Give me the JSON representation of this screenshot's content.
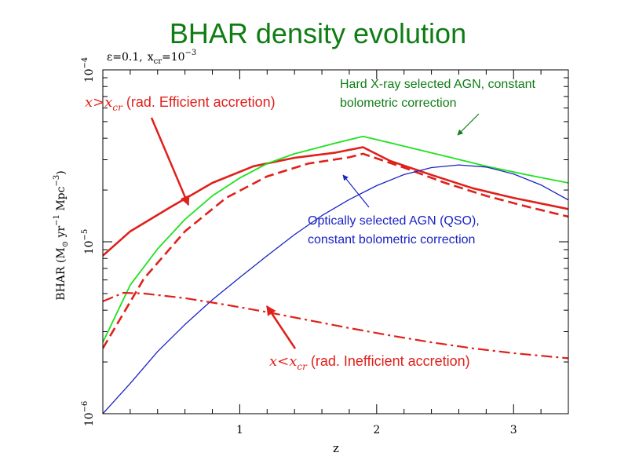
{
  "slide": {
    "title": "BHAR density evolution"
  },
  "chart_data": {
    "type": "line",
    "title": "BHAR density evolution",
    "subtitle": "ε=0.1, x_cr=10^-3",
    "subtitle_parts": {
      "eps": "ε=0.1,",
      "x": "x",
      "sub": "cr",
      "eq": "=10",
      "sup": "−3"
    },
    "xlabel": "z",
    "ylabel": "BHAR (M⊙ yr⁻¹ Mpc⁻³)",
    "ylabel_parts": {
      "pre": "BHAR (M",
      "sun": "⊙",
      "yr": " yr",
      "yrexp": "−1",
      "mpc": " Mpc",
      "mpcexp": "−3",
      "close": ")"
    },
    "xlim": [
      0.0,
      3.4
    ],
    "ylim": [
      1e-06,
      0.0001
    ],
    "yscale": "log",
    "xticks": [
      {
        "v": 1,
        "label": "1"
      },
      {
        "v": 2,
        "label": "2"
      },
      {
        "v": 3,
        "label": "3"
      }
    ],
    "yticks": [
      {
        "v": 1e-06,
        "base": "10",
        "exp": "−6"
      },
      {
        "v": 1e-05,
        "base": "10",
        "exp": "−5"
      },
      {
        "v": 0.0001,
        "base": "10",
        "exp": "−4"
      }
    ],
    "grid": false,
    "series": [
      {
        "key": "efficient",
        "color": "#e0201a",
        "style": "solid",
        "width": 2.6,
        "x": [
          0.0,
          0.2,
          0.5,
          0.8,
          1.1,
          1.4,
          1.7,
          1.9,
          2.1,
          2.4,
          2.7,
          3.0,
          3.4
        ],
        "y": [
          8.3e-06,
          1.15e-05,
          1.6e-05,
          2.2e-05,
          2.75e-05,
          3.08e-05,
          3.3e-05,
          3.55e-05,
          2.95e-05,
          2.45e-05,
          2.05e-05,
          1.8e-05,
          1.55e-05
        ]
      },
      {
        "key": "efficient-dashed",
        "color": "#e0201a",
        "style": "dashed",
        "width": 2.6,
        "x": [
          0.0,
          0.3,
          0.6,
          0.9,
          1.2,
          1.5,
          1.8,
          1.9,
          2.2,
          2.5,
          2.8,
          3.1,
          3.4
        ],
        "y": [
          2.4e-06,
          6.1e-06,
          1.15e-05,
          1.8e-05,
          2.4e-05,
          2.85e-05,
          3.1e-05,
          3.25e-05,
          2.7e-05,
          2.2e-05,
          1.85e-05,
          1.6e-05,
          1.4e-05
        ]
      },
      {
        "key": "hard-xray",
        "color": "#1fe11f",
        "style": "solid",
        "width": 1.8,
        "x": [
          0.0,
          0.2,
          0.4,
          0.6,
          0.8,
          1.0,
          1.2,
          1.4,
          1.7,
          1.9,
          2.2,
          2.5,
          2.8,
          3.1,
          3.4
        ],
        "y": [
          2.6e-06,
          5.6e-06,
          9.1e-06,
          1.35e-05,
          1.85e-05,
          2.35e-05,
          2.85e-05,
          3.25e-05,
          3.75e-05,
          4.1e-05,
          3.6e-05,
          3.15e-05,
          2.75e-05,
          2.45e-05,
          2.2e-05
        ]
      },
      {
        "key": "qso",
        "color": "#1a23c4",
        "style": "solid",
        "width": 1.3,
        "x": [
          0.0,
          0.2,
          0.4,
          0.6,
          0.8,
          1.0,
          1.2,
          1.4,
          1.6,
          1.8,
          2.0,
          2.2,
          2.4,
          2.6,
          2.8,
          3.0,
          3.2,
          3.4
        ],
        "y": [
          1e-06,
          1.5e-06,
          2.3e-06,
          3.3e-06,
          4.6e-06,
          6.2e-06,
          8.3e-06,
          1.1e-05,
          1.42e-05,
          1.76e-05,
          2.12e-05,
          2.46e-05,
          2.7e-05,
          2.8e-05,
          2.72e-05,
          2.48e-05,
          2.14e-05,
          1.75e-05
        ]
      },
      {
        "key": "inefficient",
        "color": "#e0201a",
        "style": "dashdot",
        "width": 2.2,
        "x": [
          0.0,
          0.15,
          0.3,
          0.6,
          0.9,
          1.2,
          1.5,
          1.8,
          2.1,
          2.4,
          2.7,
          3.0,
          3.4
        ],
        "y": [
          4.5e-06,
          5.05e-06,
          5e-06,
          4.7e-06,
          4.3e-06,
          3.9e-06,
          3.5e-06,
          3.15e-06,
          2.85e-06,
          2.6e-06,
          2.4e-06,
          2.25e-06,
          2.1e-06
        ]
      }
    ],
    "annotations": {
      "efficient": {
        "x": "x",
        "op": ">",
        "xsub": "x",
        "sub": "cr",
        "text": " (rad. Efficient accretion)",
        "color": "#e0201a"
      },
      "inefficient": {
        "x": "x",
        "op": "<",
        "xsub": "x",
        "sub": "cr",
        "text": " (rad. Inefficient accretion)",
        "color": "#e0201a"
      },
      "hard_xray": {
        "line1": "Hard X-ray selected AGN, constant",
        "line2": "bolometric correction",
        "color": "#0f7d14"
      },
      "qso": {
        "line1": "Optically selected AGN (QSO),",
        "line2": "constant bolometric correction",
        "color": "#1a23c4"
      }
    }
  }
}
